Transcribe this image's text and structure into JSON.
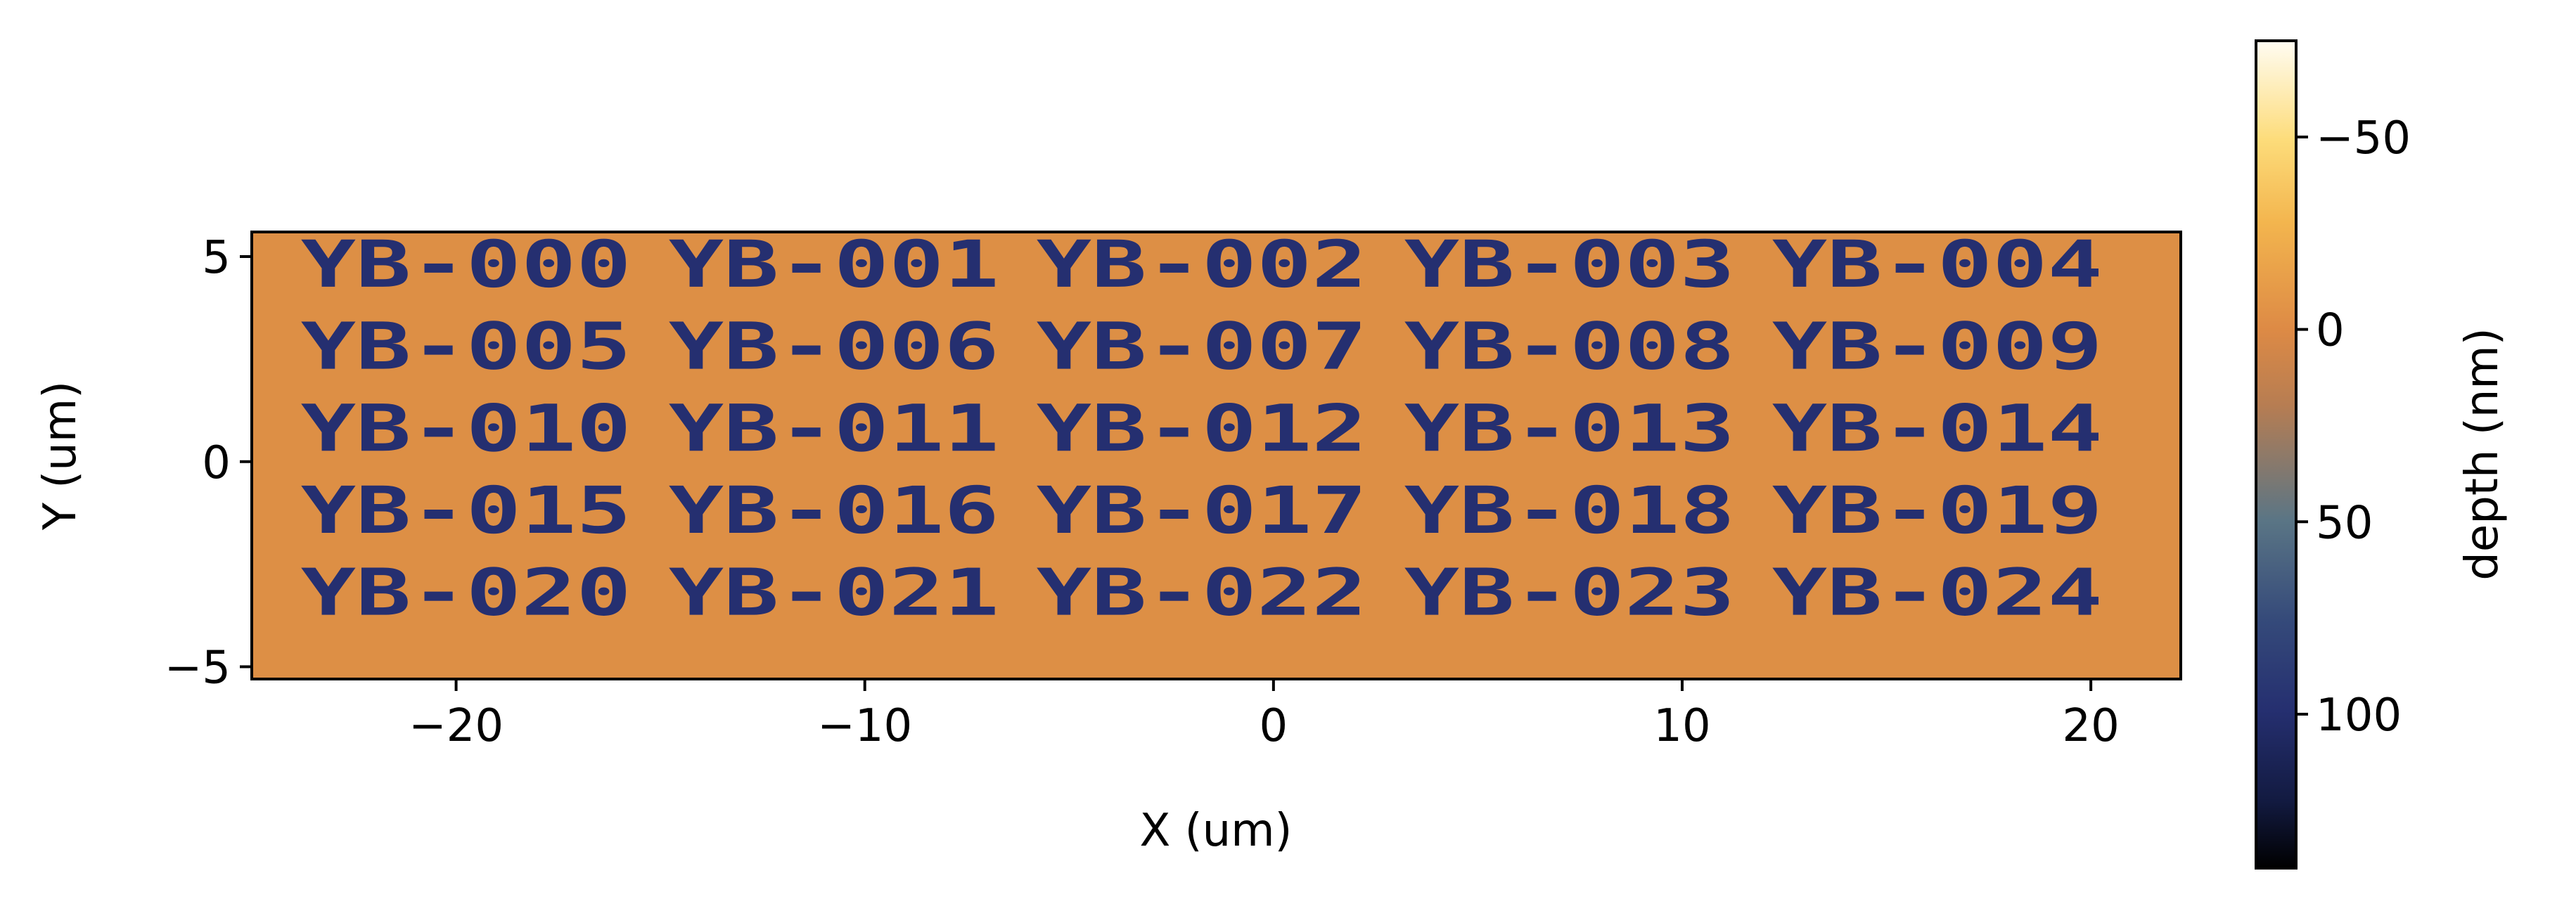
{
  "chart_data": {
    "type": "heatmap",
    "title": "",
    "xlabel": "X (um)",
    "ylabel": "Y (um)",
    "xlim": [
      -25,
      22.2
    ],
    "ylim": [
      -5.3,
      5.6
    ],
    "x_ticks": [
      -20,
      -10,
      0,
      10,
      20
    ],
    "x_tick_labels": [
      "−20",
      "−10",
      "0",
      "10",
      "20"
    ],
    "y_ticks": [
      5,
      0,
      -5
    ],
    "y_tick_labels": [
      "5",
      "0",
      "−5"
    ],
    "grid": false,
    "background_depth_nm": 0,
    "text_depth_nm": 100,
    "labels": [
      {
        "text": "YB-000",
        "x": -23.8,
        "y": 4.7
      },
      {
        "text": "YB-001",
        "x": -14.8,
        "y": 4.7
      },
      {
        "text": "YB-002",
        "x": -5.8,
        "y": 4.7
      },
      {
        "text": "YB-003",
        "x": 3.2,
        "y": 4.7
      },
      {
        "text": "YB-004",
        "x": 12.2,
        "y": 4.7
      },
      {
        "text": "YB-005",
        "x": -23.8,
        "y": 2.7
      },
      {
        "text": "YB-006",
        "x": -14.8,
        "y": 2.7
      },
      {
        "text": "YB-007",
        "x": -5.8,
        "y": 2.7
      },
      {
        "text": "YB-008",
        "x": 3.2,
        "y": 2.7
      },
      {
        "text": "YB-009",
        "x": 12.2,
        "y": 2.7
      },
      {
        "text": "YB-010",
        "x": -23.8,
        "y": 0.7
      },
      {
        "text": "YB-011",
        "x": -14.8,
        "y": 0.7
      },
      {
        "text": "YB-012",
        "x": -5.8,
        "y": 0.7
      },
      {
        "text": "YB-013",
        "x": 3.2,
        "y": 0.7
      },
      {
        "text": "YB-014",
        "x": 12.2,
        "y": 0.7
      },
      {
        "text": "YB-015",
        "x": -23.8,
        "y": -1.3
      },
      {
        "text": "YB-016",
        "x": -14.8,
        "y": -1.3
      },
      {
        "text": "YB-017",
        "x": -5.8,
        "y": -1.3
      },
      {
        "text": "YB-018",
        "x": 3.2,
        "y": -1.3
      },
      {
        "text": "YB-019",
        "x": 12.2,
        "y": -1.3
      },
      {
        "text": "YB-020",
        "x": -23.8,
        "y": -3.3
      },
      {
        "text": "YB-021",
        "x": -14.8,
        "y": -3.3
      },
      {
        "text": "YB-022",
        "x": -5.8,
        "y": -3.3
      },
      {
        "text": "YB-023",
        "x": 3.2,
        "y": -3.3
      },
      {
        "text": "YB-024",
        "x": 12.2,
        "y": -3.3
      }
    ],
    "colorbar": {
      "label": "depth (nm)",
      "range": [
        -75,
        140
      ],
      "inverted": true,
      "ticks": [
        -50,
        0,
        50,
        100
      ],
      "tick_labels": [
        "−50",
        "0",
        "50",
        "100"
      ],
      "colors": {
        "low": "#fffcf2",
        "mid_low": "#fdd35e",
        "zero": "#dd8a45",
        "mid_high": "#5a7585",
        "high": "#252f70",
        "end": "#000000"
      }
    }
  }
}
